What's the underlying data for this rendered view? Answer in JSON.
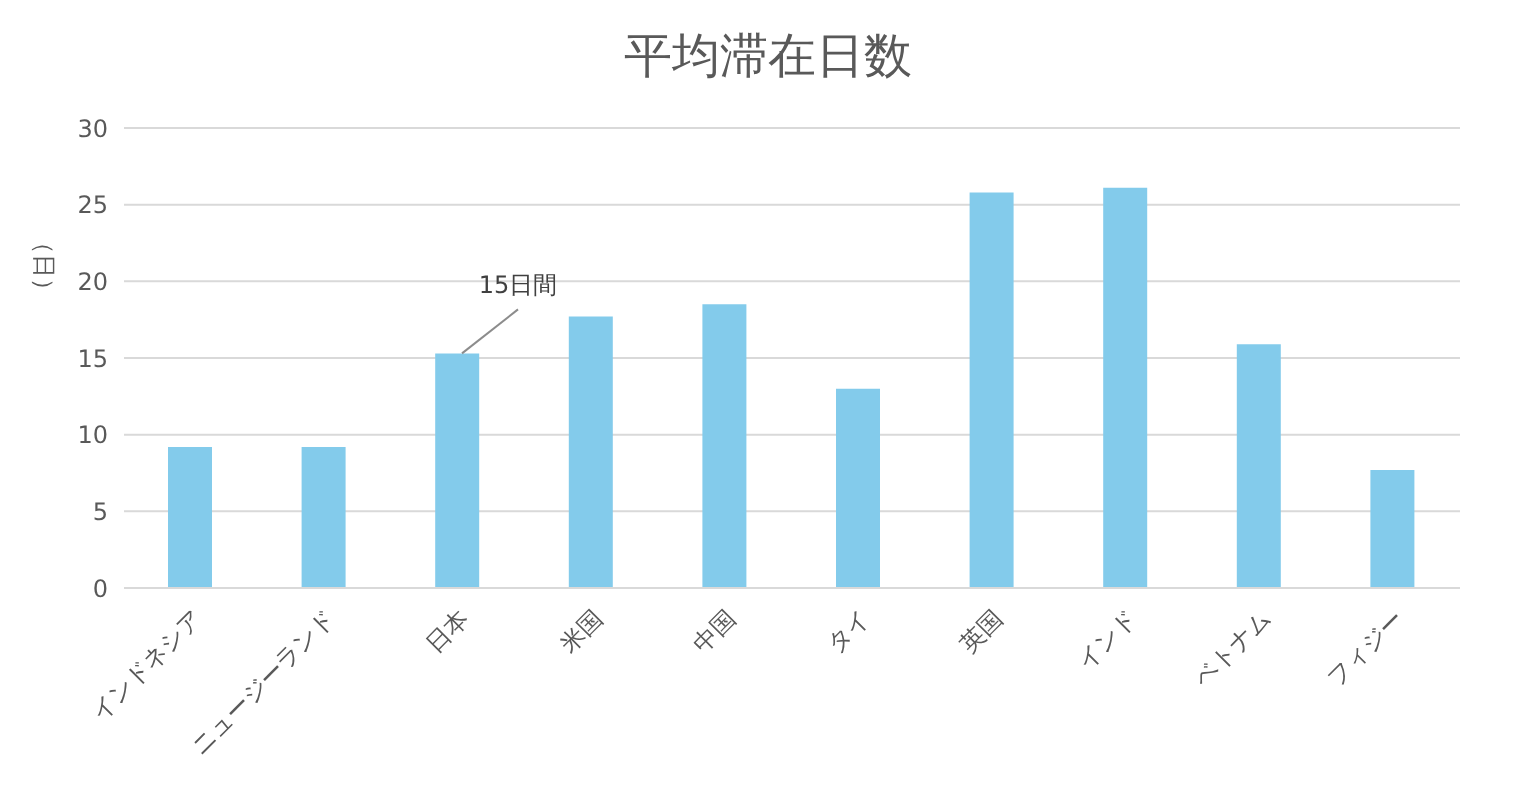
{
  "chart_data": {
    "type": "bar",
    "title": "平均滞在日数",
    "ylabel": "（日）",
    "categories": [
      "インドネシア",
      "ニュージーランド",
      "日本",
      "米国",
      "中国",
      "タイ",
      "英国",
      "インド",
      "ベトナム",
      "フィジー"
    ],
    "values": [
      9.2,
      9.2,
      15.3,
      17.7,
      18.5,
      13.0,
      25.8,
      26.1,
      15.9,
      7.7
    ],
    "color": "#83cbeb",
    "ylim": [
      0,
      30
    ],
    "yticks": [
      0,
      5,
      10,
      15,
      20,
      25,
      30
    ],
    "grid": "y",
    "annotations": [
      {
        "text": "15日間",
        "x": "日本",
        "y": 15.3
      }
    ]
  }
}
